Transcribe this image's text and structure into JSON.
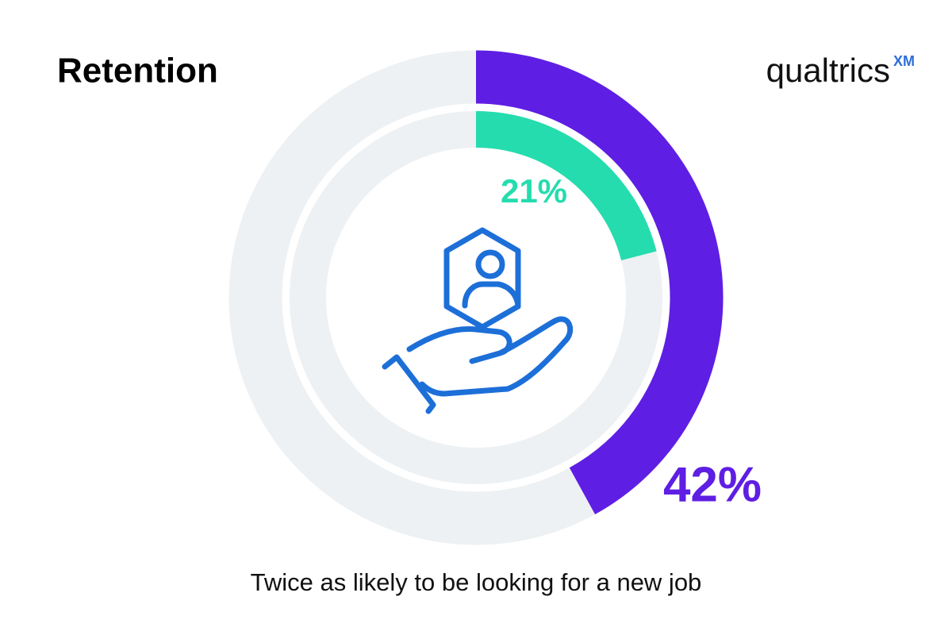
{
  "title": "Retention",
  "logo": {
    "text": "qualtrics",
    "mark": "XM"
  },
  "chart_data": {
    "type": "radial",
    "values": [
      42,
      21
    ],
    "value_labels": [
      "42%",
      "21%"
    ],
    "colors": [
      "#5f1ee3",
      "#25dcae"
    ],
    "track_color": "#edf1f3",
    "ylim": [
      0,
      100
    ],
    "caption": "Twice as likely to be looking for a new job"
  }
}
